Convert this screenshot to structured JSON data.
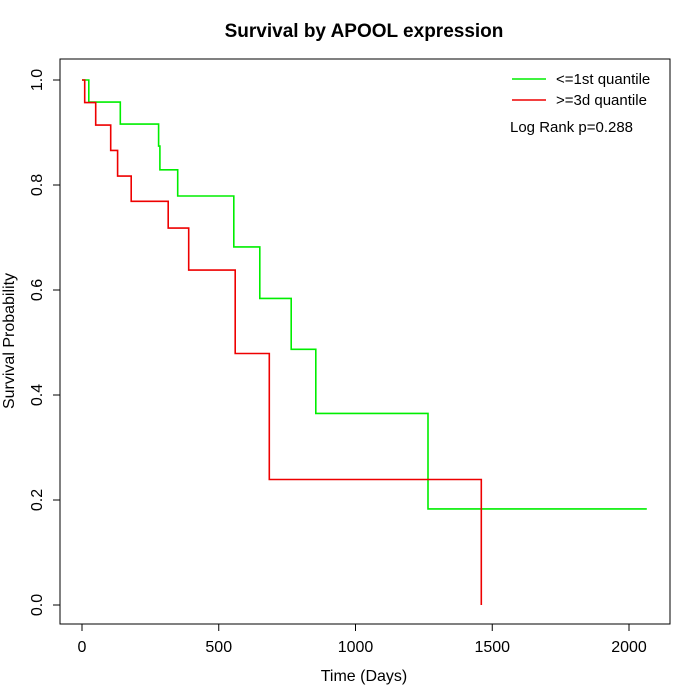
{
  "chart_data": {
    "type": "line",
    "title": "Survival by APOOL expression",
    "xlabel": "Time (Days)",
    "ylabel": "Survival Probability",
    "xlim": [
      0,
      2100
    ],
    "ylim": [
      0,
      1.0
    ],
    "x_ticks": [
      0,
      500,
      1000,
      1500,
      2000
    ],
    "y_ticks": [
      "0.0",
      "0.2",
      "0.4",
      "0.6",
      "0.8",
      "1.0"
    ],
    "grid": false,
    "legend_position": "top-right",
    "annotation": "Log Rank p=0.288",
    "series": [
      {
        "name": "<=1st quantile",
        "color": "#00ee00",
        "step_points": [
          [
            0,
            1.0
          ],
          [
            25,
            1.0
          ],
          [
            25,
            0.958
          ],
          [
            140,
            0.958
          ],
          [
            140,
            0.916
          ],
          [
            280,
            0.916
          ],
          [
            280,
            0.874
          ],
          [
            285,
            0.874
          ],
          [
            285,
            0.829
          ],
          [
            350,
            0.829
          ],
          [
            350,
            0.779
          ],
          [
            555,
            0.779
          ],
          [
            555,
            0.682
          ],
          [
            650,
            0.682
          ],
          [
            650,
            0.584
          ],
          [
            765,
            0.584
          ],
          [
            765,
            0.487
          ],
          [
            855,
            0.487
          ],
          [
            855,
            0.365
          ],
          [
            1265,
            0.365
          ],
          [
            1265,
            0.183
          ],
          [
            2065,
            0.183
          ]
        ]
      },
      {
        "name": ">=3d quantile",
        "color": "#ee0000",
        "step_points": [
          [
            0,
            1.0
          ],
          [
            10,
            1.0
          ],
          [
            10,
            0.957
          ],
          [
            50,
            0.957
          ],
          [
            50,
            0.914
          ],
          [
            105,
            0.914
          ],
          [
            105,
            0.866
          ],
          [
            130,
            0.866
          ],
          [
            130,
            0.817
          ],
          [
            180,
            0.817
          ],
          [
            180,
            0.769
          ],
          [
            315,
            0.769
          ],
          [
            315,
            0.718
          ],
          [
            390,
            0.718
          ],
          [
            390,
            0.638
          ],
          [
            560,
            0.638
          ],
          [
            560,
            0.479
          ],
          [
            685,
            0.479
          ],
          [
            685,
            0.239
          ],
          [
            1460,
            0.239
          ],
          [
            1460,
            0.0
          ]
        ]
      }
    ]
  }
}
